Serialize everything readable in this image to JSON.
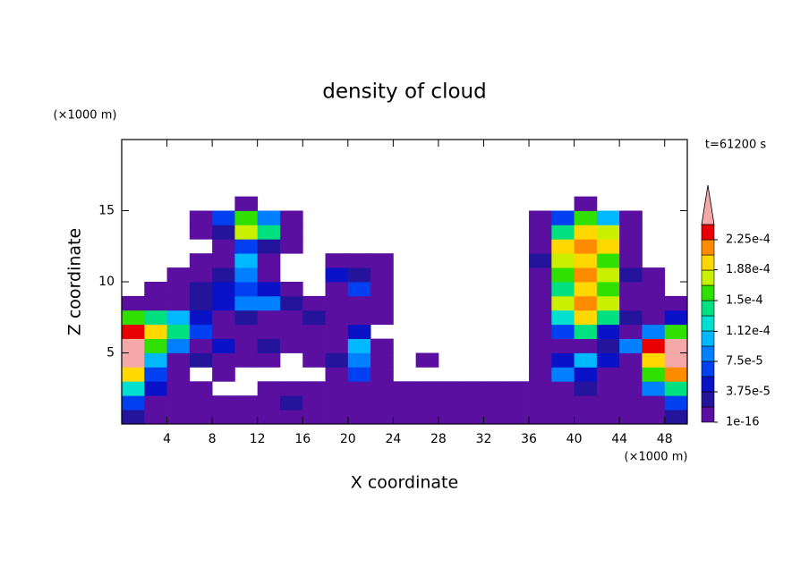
{
  "chart_data": {
    "type": "contour",
    "title": "density of cloud",
    "x_label": "X coordinate",
    "y_label": "Z coordinate",
    "x_unit_label": "(×1000 m)",
    "y_unit_label": "(×1000 m)",
    "time_label": "t=61200 s",
    "xlim": [
      0,
      50
    ],
    "ylim": [
      0,
      20
    ],
    "xticks": [
      4,
      8,
      12,
      16,
      20,
      24,
      28,
      32,
      36,
      40,
      44,
      48
    ],
    "yticks": [
      5,
      10,
      15
    ],
    "x": [
      1,
      3,
      5,
      7,
      9,
      11,
      13,
      15,
      17,
      19,
      21,
      23,
      25,
      27,
      29,
      31,
      33,
      35,
      37,
      39,
      41,
      43,
      45,
      47,
      49
    ],
    "y": [
      0.5,
      1.5,
      2.5,
      3.5,
      4.5,
      5.5,
      6.5,
      7.5,
      8.5,
      9.5,
      10.5,
      11.5,
      12.5,
      13.5,
      14.5,
      15.5
    ],
    "values": [
      [
        2.5e-05,
        5e-06,
        5e-06,
        5e-06,
        5e-06,
        5e-06,
        5e-06,
        5e-06,
        5e-06,
        5e-06,
        5e-06,
        5e-06,
        5e-06,
        5e-06,
        5e-06,
        5e-06,
        5e-06,
        5e-06,
        5e-06,
        5e-06,
        5e-06,
        5e-06,
        5e-06,
        5e-06,
        2.5e-05
      ],
      [
        6e-05,
        5e-06,
        5e-06,
        5e-06,
        5e-06,
        5e-06,
        5e-06,
        2.5e-05,
        5e-06,
        5e-06,
        5e-06,
        5e-06,
        5e-06,
        5e-06,
        5e-06,
        5e-06,
        5e-06,
        5e-06,
        5e-06,
        5e-06,
        5e-06,
        5e-06,
        5e-06,
        5e-06,
        6e-05
      ],
      [
        0.00012,
        4.5e-05,
        5e-06,
        5e-06,
        0,
        0,
        5e-06,
        5e-06,
        5e-06,
        5e-06,
        5e-06,
        5e-06,
        5e-06,
        5e-06,
        5e-06,
        5e-06,
        5e-06,
        5e-06,
        5e-06,
        5e-06,
        2.5e-05,
        5e-06,
        5e-06,
        8e-05,
        0.00014
      ],
      [
        0.0002,
        6e-05,
        5e-06,
        0,
        5e-06,
        0,
        0,
        0,
        0,
        5e-06,
        6e-05,
        5e-06,
        0,
        0,
        0,
        0,
        0,
        0,
        5e-06,
        8e-05,
        4.5e-05,
        5e-06,
        5e-06,
        0.00016,
        0.00022
      ],
      [
        0.00026,
        0.0001,
        5e-06,
        2.5e-05,
        5e-06,
        5e-06,
        5e-06,
        0,
        5e-06,
        2.5e-05,
        8e-05,
        5e-06,
        0,
        5e-06,
        0,
        0,
        0,
        0,
        5e-06,
        4.5e-05,
        0.0001,
        4.5e-05,
        5e-06,
        0.0002,
        0.00026
      ],
      [
        0.00026,
        0.00016,
        8e-05,
        5e-06,
        4.5e-05,
        5e-06,
        2.5e-05,
        5e-06,
        5e-06,
        5e-06,
        0.0001,
        5e-06,
        0,
        0,
        0,
        0,
        0,
        0,
        5e-06,
        5e-06,
        5e-06,
        2.5e-05,
        8e-05,
        0.000235,
        0.00026
      ],
      [
        0.000235,
        0.0002,
        0.00014,
        6e-05,
        5e-06,
        5e-06,
        5e-06,
        5e-06,
        5e-06,
        5e-06,
        4.5e-05,
        0,
        0,
        0,
        0,
        0,
        0,
        0,
        5e-06,
        6e-05,
        0.00014,
        4.5e-05,
        5e-06,
        8e-05,
        0.00016
      ],
      [
        0.00016,
        0.00014,
        0.0001,
        4.5e-05,
        5e-06,
        2.5e-05,
        5e-06,
        5e-06,
        2.5e-05,
        5e-06,
        5e-06,
        5e-06,
        0,
        0,
        0,
        0,
        0,
        0,
        5e-06,
        0.00012,
        0.0002,
        0.00014,
        2.5e-05,
        5e-06,
        4.5e-05
      ],
      [
        5e-06,
        5e-06,
        5e-06,
        2.5e-05,
        4.5e-05,
        8e-05,
        8e-05,
        2.5e-05,
        5e-06,
        5e-06,
        5e-06,
        5e-06,
        0,
        0,
        0,
        0,
        0,
        0,
        5e-06,
        0.00018,
        0.00022,
        0.00018,
        5e-06,
        5e-06,
        5e-06
      ],
      [
        0,
        5e-06,
        5e-06,
        2.5e-05,
        4.5e-05,
        6e-05,
        4.5e-05,
        5e-06,
        0,
        5e-06,
        6e-05,
        5e-06,
        0,
        0,
        0,
        0,
        0,
        0,
        5e-06,
        0.00014,
        0.0002,
        0.00016,
        5e-06,
        5e-06,
        0
      ],
      [
        0,
        0,
        5e-06,
        5e-06,
        2.5e-05,
        8e-05,
        5e-06,
        0,
        0,
        4.5e-05,
        2.5e-05,
        5e-06,
        0,
        0,
        0,
        0,
        0,
        0,
        5e-06,
        0.00016,
        0.00022,
        0.00018,
        2.5e-05,
        5e-06,
        0
      ],
      [
        0,
        0,
        0,
        5e-06,
        5e-06,
        0.0001,
        5e-06,
        0,
        0,
        5e-06,
        5e-06,
        5e-06,
        0,
        0,
        0,
        0,
        0,
        0,
        2.5e-05,
        0.00018,
        0.0002,
        0.00016,
        5e-06,
        0,
        0
      ],
      [
        0,
        0,
        0,
        0,
        5e-06,
        6e-05,
        2.5e-05,
        5e-06,
        0,
        0,
        0,
        0,
        0,
        0,
        0,
        0,
        0,
        0,
        5e-06,
        0.0002,
        0.00022,
        0.0002,
        5e-06,
        0,
        0
      ],
      [
        0,
        0,
        0,
        5e-06,
        2.5e-05,
        0.00018,
        0.00014,
        5e-06,
        0,
        0,
        0,
        0,
        0,
        0,
        0,
        0,
        0,
        0,
        5e-06,
        0.00014,
        0.0002,
        0.00018,
        5e-06,
        0,
        0
      ],
      [
        0,
        0,
        0,
        5e-06,
        6e-05,
        0.00016,
        8e-05,
        5e-06,
        0,
        0,
        0,
        0,
        0,
        0,
        0,
        0,
        0,
        0,
        5e-06,
        6e-05,
        0.00016,
        0.0001,
        5e-06,
        0,
        0
      ],
      [
        0,
        0,
        0,
        0,
        0,
        5e-06,
        0,
        0,
        0,
        0,
        0,
        0,
        0,
        0,
        0,
        0,
        0,
        0,
        0,
        0,
        5e-06,
        0,
        0,
        0,
        0
      ]
    ],
    "levels": [
      1e-16,
      1.875e-05,
      3.75e-05,
      5.625e-05,
      7.5e-05,
      9.375e-05,
      0.0001125,
      0.00013125,
      0.00015,
      0.00016875,
      0.0001875,
      0.00020625,
      0.000225,
      0.00024375
    ],
    "colors": [
      "#5a0fa0",
      "#24149c",
      "#0a12c8",
      "#0040f0",
      "#0080ff",
      "#00b8ff",
      "#00e0d0",
      "#00e080",
      "#30e000",
      "#c8f000",
      "#ffd800",
      "#ff8c00",
      "#e80000"
    ],
    "over_color": "#f5a8a8",
    "cticks": [
      {
        "value": 1e-16,
        "label": "1e-16"
      },
      {
        "value": 3.75e-05,
        "label": "3.75e-5"
      },
      {
        "value": 7.5e-05,
        "label": "7.5e-5"
      },
      {
        "value": 0.000112,
        "label": "1.12e-4"
      },
      {
        "value": 0.00015,
        "label": "1.5e-4"
      },
      {
        "value": 0.000188,
        "label": "1.88e-4"
      },
      {
        "value": 0.000225,
        "label": "2.25e-4"
      }
    ]
  }
}
